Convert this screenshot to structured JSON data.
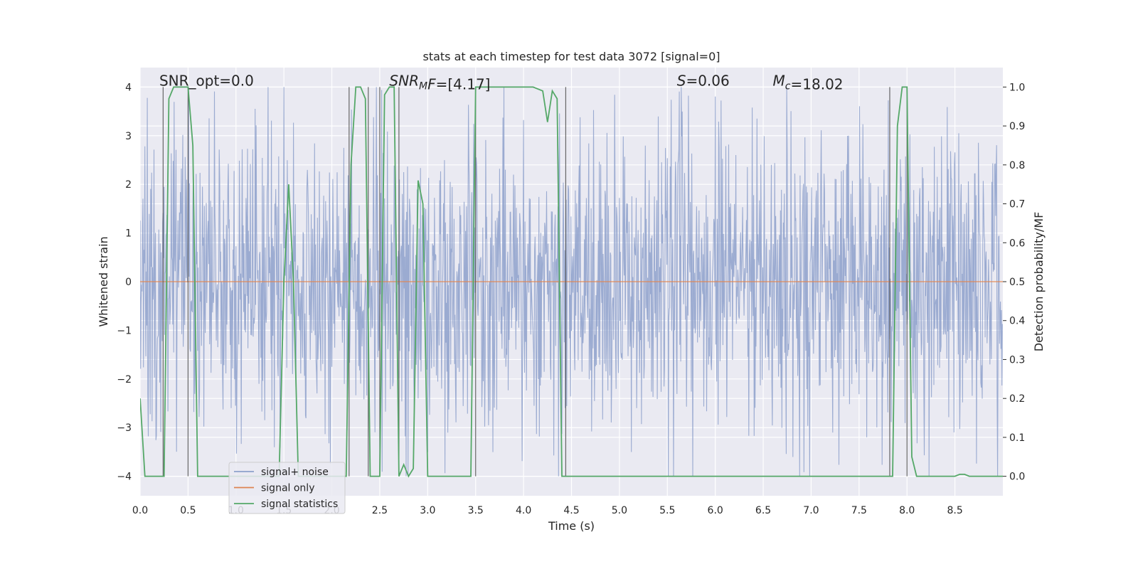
{
  "chart_data": {
    "type": "line",
    "title": "stats at each timestep for test data 3072 [signal=0]",
    "xlabel": "Time (s)",
    "ylabel": "Whitened strain",
    "ylabel_right": "Detection probability/MF",
    "xlim": [
      0,
      9.0
    ],
    "ylim": [
      -4.4,
      4.4
    ],
    "ylim_right": [
      -0.05,
      1.05
    ],
    "xticks": [
      0.0,
      0.5,
      1.0,
      1.5,
      2.0,
      2.5,
      3.0,
      3.5,
      4.0,
      4.5,
      5.0,
      5.5,
      6.0,
      6.5,
      7.0,
      7.5,
      8.0,
      8.5
    ],
    "xtick_labels": [
      "0.0",
      "0.5",
      "1.0",
      "1.5",
      "2.0",
      "2.5",
      "3.0",
      "3.5",
      "4.0",
      "4.5",
      "5.0",
      "5.5",
      "6.0",
      "6.5",
      "7.0",
      "7.5",
      "8.0",
      "8.5"
    ],
    "yticks": [
      -4,
      -3,
      -2,
      -1,
      0,
      1,
      2,
      3,
      4
    ],
    "ytick_labels": [
      "−4",
      "−3",
      "−2",
      "−1",
      "0",
      "1",
      "2",
      "3",
      "4"
    ],
    "yticks_right": [
      0.0,
      0.1,
      0.2,
      0.3,
      0.4,
      0.5,
      0.6,
      0.7,
      0.8,
      0.9,
      1.0
    ],
    "ytick_labels_right": [
      "0.0",
      "0.1",
      "0.2",
      "0.3",
      "0.4",
      "0.5",
      "0.6",
      "0.7",
      "0.8",
      "0.9",
      "1.0"
    ],
    "grid": true,
    "legend_position": "lower-left",
    "annotations": [
      {
        "parts": [
          {
            "text": "SNR_opt=0.0",
            "italic": false
          }
        ],
        "x": 0.2,
        "y": 4.0
      },
      {
        "parts": [
          {
            "text": "SNR",
            "italic": true
          },
          {
            "text": "M",
            "italic": true,
            "sub": true
          },
          {
            "text": "F",
            "italic": true
          },
          {
            "text": "=[4.17]",
            "italic": false
          }
        ],
        "x": 2.6,
        "y": 4.0
      },
      {
        "parts": [
          {
            "text": "S",
            "italic": true
          },
          {
            "text": "=0.06",
            "italic": false
          }
        ],
        "x": 5.6,
        "y": 4.0
      },
      {
        "parts": [
          {
            "text": "M",
            "italic": true
          },
          {
            "text": "c",
            "italic": true,
            "sub": true
          },
          {
            "text": "=18.02",
            "italic": false
          }
        ],
        "x": 6.6,
        "y": 4.0
      }
    ],
    "vertical_markers": [
      0.24,
      0.5,
      2.18,
      2.38,
      2.5,
      2.7,
      3.5,
      4.44,
      7.82,
      8.0
    ],
    "series": [
      {
        "name": "signal+ noise",
        "color": "#8da0cb",
        "kind": "noise",
        "sample_rate": 200,
        "duration": 9.0,
        "envelope": 1.6,
        "peak": 4.0
      },
      {
        "name": "signal only",
        "color": "#dd8452",
        "kind": "line",
        "x": [
          0.0,
          9.0
        ],
        "y": [
          0,
          0
        ]
      },
      {
        "name": "signal statistics",
        "color": "#55a868",
        "kind": "line",
        "axis": "right",
        "x": [
          0.0,
          0.05,
          0.1,
          0.15,
          0.2,
          0.25,
          0.3,
          0.35,
          0.4,
          0.45,
          0.5,
          0.55,
          0.6,
          0.65,
          0.7,
          0.8,
          0.9,
          1.0,
          1.1,
          1.2,
          1.3,
          1.4,
          1.45,
          1.5,
          1.55,
          1.6,
          1.65,
          1.7,
          1.8,
          1.9,
          2.0,
          2.1,
          2.15,
          2.2,
          2.25,
          2.3,
          2.35,
          2.4,
          2.45,
          2.5,
          2.55,
          2.6,
          2.65,
          2.7,
          2.75,
          2.8,
          2.85,
          2.9,
          2.95,
          3.0,
          3.05,
          3.1,
          3.2,
          3.3,
          3.4,
          3.45,
          3.5,
          3.55,
          3.6,
          3.7,
          3.8,
          3.9,
          4.0,
          4.1,
          4.2,
          4.25,
          4.3,
          4.35,
          4.4,
          4.45,
          4.5,
          4.55,
          4.6,
          5.0,
          5.5,
          6.0,
          6.5,
          7.0,
          7.5,
          7.8,
          7.85,
          7.9,
          7.95,
          8.0,
          8.05,
          8.1,
          8.2,
          8.3,
          8.4,
          8.5,
          8.55,
          8.6,
          8.65,
          8.7,
          8.8,
          9.0
        ],
        "y": [
          0.2,
          0.0,
          0.0,
          0.0,
          0.0,
          0.0,
          0.97,
          1.0,
          1.0,
          1.0,
          1.0,
          0.85,
          0.0,
          0.0,
          0.0,
          0.0,
          0.0,
          0.0,
          0.0,
          0.0,
          0.0,
          0.0,
          0.0,
          0.5,
          0.75,
          0.5,
          0.0,
          0.0,
          0.0,
          0.0,
          0.0,
          0.0,
          0.0,
          0.8,
          1.0,
          1.0,
          0.97,
          0.0,
          0.0,
          0.0,
          0.98,
          1.0,
          1.0,
          0.0,
          0.03,
          0.0,
          0.02,
          0.76,
          0.7,
          0.0,
          0.0,
          0.0,
          0.0,
          0.0,
          0.0,
          0.0,
          1.0,
          1.0,
          1.0,
          1.0,
          1.0,
          1.0,
          1.0,
          1.0,
          0.99,
          0.91,
          0.99,
          0.97,
          0.0,
          0.0,
          0.0,
          0.0,
          0.0,
          0.0,
          0.0,
          0.0,
          0.0,
          0.0,
          0.0,
          0.0,
          0.0,
          0.9,
          1.0,
          1.0,
          0.05,
          0.0,
          0.0,
          0.0,
          0.0,
          0.0,
          0.005,
          0.005,
          0.0,
          0.0,
          0.0,
          0.0
        ]
      }
    ]
  }
}
